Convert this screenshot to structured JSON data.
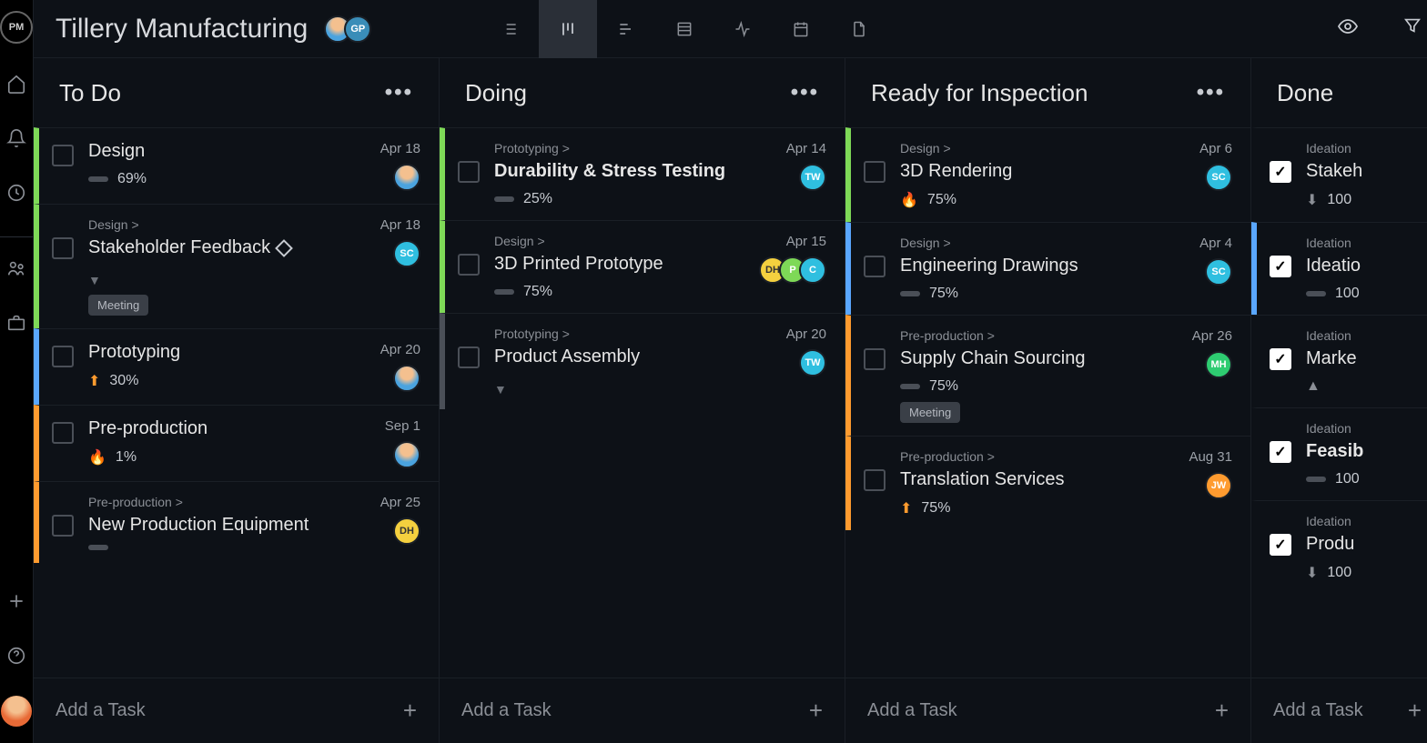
{
  "app": {
    "logo_text": "PM"
  },
  "header": {
    "project_title": "Tillery Manufacturing",
    "avatars": [
      {
        "type": "face",
        "bg": "#4aa3df"
      },
      {
        "label": "GP",
        "bg": "#3a8db8",
        "fg": "#ffffff"
      }
    ]
  },
  "colors": {
    "green": "#7ed957",
    "blue": "#5aa7ff",
    "orange": "#ff9b2f",
    "gray": "#4a4f57"
  },
  "add_task_label": "Add a Task",
  "columns": [
    {
      "title": "To Do",
      "cards": [
        {
          "stripe": "#7ed957",
          "title": "Design",
          "percent": "69%",
          "priority": "bar",
          "date": "Apr 18",
          "assignees": [
            {
              "type": "face"
            }
          ]
        },
        {
          "stripe": "#7ed957",
          "parent": "Design >",
          "title": "Stakeholder Feedback",
          "milestone": true,
          "expand": true,
          "date": "Apr 18",
          "assignees": [
            {
              "label": "SC",
              "bg": "#2fbfe0",
              "fg": "#ffffff"
            }
          ],
          "tags": [
            "Meeting"
          ]
        },
        {
          "stripe": "#5aa7ff",
          "title": "Prototyping",
          "percent": "30%",
          "priority": "up",
          "priority_color": "#ff9b2f",
          "date": "Apr 20",
          "assignees": [
            {
              "type": "face"
            }
          ]
        },
        {
          "stripe": "#ff9b2f",
          "title": "Pre-production",
          "percent": "1%",
          "priority": "fire",
          "date": "Sep 1",
          "assignees": [
            {
              "type": "face"
            }
          ]
        },
        {
          "stripe": "#ff9b2f",
          "parent": "Pre-production >",
          "title": "New Production Equipment",
          "priority": "bar",
          "date": "Apr 25",
          "assignees": [
            {
              "label": "DH",
              "bg": "#f4d03f",
              "fg": "#333333"
            }
          ]
        }
      ]
    },
    {
      "title": "Doing",
      "cards": [
        {
          "stripe": "#7ed957",
          "parent": "Prototyping >",
          "title": "Durability & Stress Testing",
          "bold": true,
          "percent": "25%",
          "priority": "bar",
          "date": "Apr 14",
          "assignees": [
            {
              "label": "TW",
              "bg": "#2fbfe0",
              "fg": "#ffffff"
            }
          ]
        },
        {
          "stripe": "#7ed957",
          "parent": "Design >",
          "title": "3D Printed Prototype",
          "percent": "75%",
          "priority": "bar",
          "date": "Apr 15",
          "assignees": [
            {
              "label": "DH",
              "bg": "#f4d03f",
              "fg": "#333333"
            },
            {
              "label": "P",
              "bg": "#7ed957",
              "fg": "#ffffff"
            },
            {
              "label": "C",
              "bg": "#2fbfe0",
              "fg": "#ffffff"
            }
          ]
        },
        {
          "stripe": "#4a4f57",
          "parent": "Prototyping >",
          "title": "Product Assembly",
          "expand": true,
          "date": "Apr 20",
          "assignees": [
            {
              "label": "TW",
              "bg": "#2fbfe0",
              "fg": "#ffffff"
            }
          ]
        }
      ]
    },
    {
      "title": "Ready for Inspection",
      "cards": [
        {
          "stripe": "#7ed957",
          "parent": "Design >",
          "title": "3D Rendering",
          "percent": "75%",
          "priority": "fire",
          "date": "Apr 6",
          "assignees": [
            {
              "label": "SC",
              "bg": "#2fbfe0",
              "fg": "#ffffff"
            }
          ]
        },
        {
          "stripe": "#5aa7ff",
          "parent": "Design >",
          "title": "Engineering Drawings",
          "percent": "75%",
          "priority": "bar",
          "date": "Apr 4",
          "assignees": [
            {
              "label": "SC",
              "bg": "#2fbfe0",
              "fg": "#ffffff"
            }
          ]
        },
        {
          "stripe": "#ff9b2f",
          "parent": "Pre-production >",
          "title": "Supply Chain Sourcing",
          "percent": "75%",
          "priority": "bar",
          "date": "Apr 26",
          "assignees": [
            {
              "label": "MH",
              "bg": "#2ecc71",
              "fg": "#ffffff"
            }
          ],
          "tags": [
            "Meeting"
          ]
        },
        {
          "stripe": "#ff9b2f",
          "parent": "Pre-production >",
          "title": "Translation Services",
          "percent": "75%",
          "priority": "up",
          "priority_color": "#ff9b2f",
          "date": "Aug 31",
          "assignees": [
            {
              "label": "JW",
              "bg": "#ff9b2f",
              "fg": "#ffffff"
            }
          ]
        }
      ]
    },
    {
      "title": "Done",
      "narrow": true,
      "cards": [
        {
          "parent": "Ideation",
          "title": "Stakeh",
          "checked": true,
          "percent": "100",
          "priority": "down"
        },
        {
          "parent": "Ideation",
          "title": "Ideatio",
          "checked": true,
          "percent": "100",
          "priority": "bar",
          "stripe": "#5aa7ff"
        },
        {
          "parent": "Ideation",
          "title": "Marke",
          "checked": true,
          "priority": "upgray"
        },
        {
          "parent": "Ideation",
          "title": "Feasib",
          "checked": true,
          "bold": true,
          "percent": "100",
          "priority": "bar"
        },
        {
          "parent": "Ideation",
          "title": "Produ",
          "checked": true,
          "percent": "100",
          "priority": "down"
        }
      ]
    }
  ]
}
